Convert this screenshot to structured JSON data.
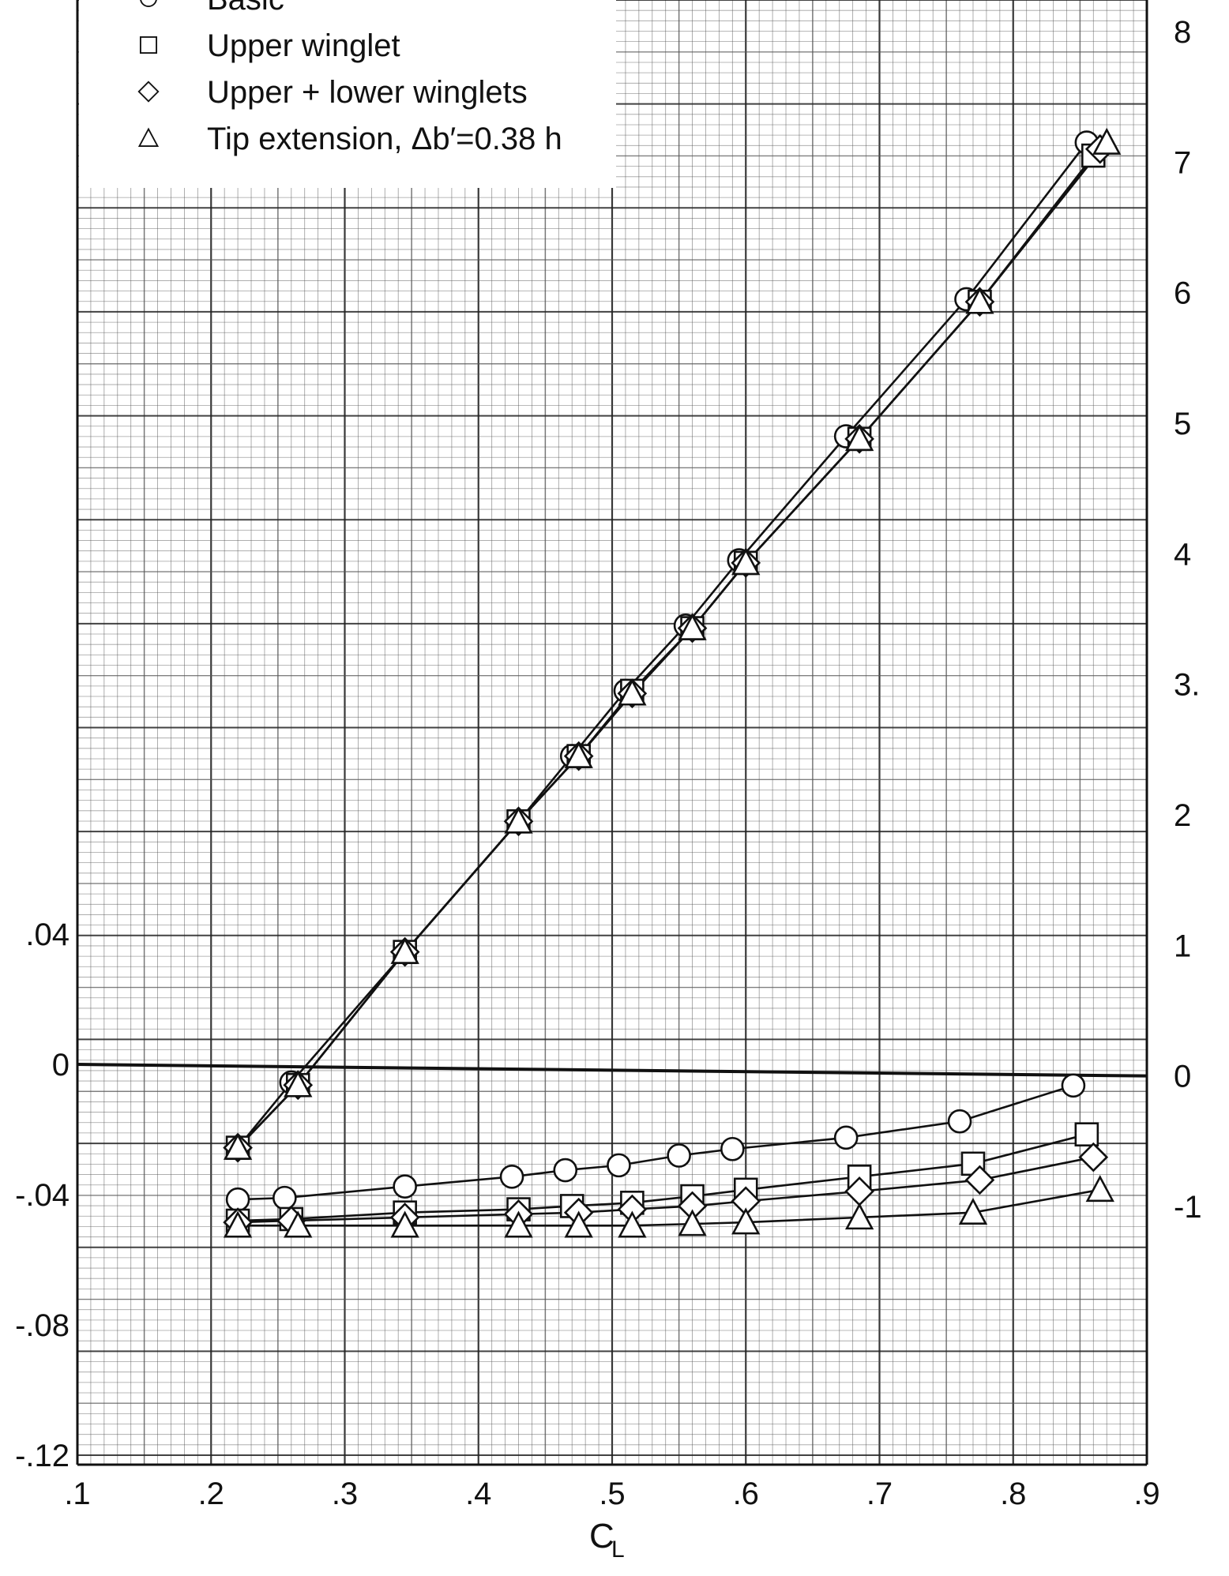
{
  "chart_data": {
    "type": "line",
    "xlabel": "C",
    "xlabel_subscript": "L",
    "xlim": [
      0.1,
      0.9
    ],
    "x_ticks": [
      ".1",
      ".2",
      ".3",
      ".4",
      ".5",
      ".6",
      ".7",
      ".8",
      ".9"
    ],
    "left_axis": {
      "ylim": [
        -0.12,
        0.04
      ],
      "tick_labels": [
        ".04",
        "0",
        "-.04",
        "-.08",
        "-.12"
      ],
      "tick_values": [
        0.04,
        0,
        -0.04,
        -0.08,
        -0.12
      ]
    },
    "right_axis": {
      "ylim": [
        -1.95,
        8.2
      ],
      "tick_labels": [
        "8",
        "7",
        "6",
        "5",
        "4",
        "3.",
        "2",
        "1",
        "0",
        "-1"
      ],
      "tick_values": [
        8,
        7,
        6,
        5,
        4,
        3,
        2,
        1,
        0,
        -1
      ]
    },
    "grid": true,
    "legend_position": "top-left",
    "legend": [
      {
        "marker": "circle",
        "label": "Basic"
      },
      {
        "marker": "square",
        "label": "Upper winglet"
      },
      {
        "marker": "diamond",
        "label": "Upper + lower winglets"
      },
      {
        "marker": "triangle",
        "label": "Tip extension, Δb′=0.38 h"
      }
    ],
    "upper_curves": {
      "axis": "right",
      "series": [
        {
          "marker": "circle",
          "x": [
            0.22,
            0.26,
            0.345,
            0.43,
            0.47,
            0.51,
            0.555,
            0.595,
            0.675,
            0.765,
            0.855
          ],
          "y": [
            -0.55,
            -0.05,
            0.95,
            1.95,
            2.45,
            2.95,
            3.45,
            3.95,
            4.9,
            5.95,
            7.15
          ]
        },
        {
          "marker": "square",
          "x": [
            0.22,
            0.265,
            0.345,
            0.43,
            0.475,
            0.515,
            0.56,
            0.6,
            0.685,
            0.775,
            0.86
          ],
          "y": [
            -0.55,
            -0.07,
            0.95,
            1.95,
            2.45,
            2.95,
            3.43,
            3.93,
            4.88,
            5.93,
            7.05
          ]
        },
        {
          "marker": "diamond",
          "x": [
            0.22,
            0.265,
            0.345,
            0.43,
            0.475,
            0.515,
            0.56,
            0.6,
            0.685,
            0.775,
            0.865
          ],
          "y": [
            -0.55,
            -0.07,
            0.95,
            1.95,
            2.45,
            2.93,
            3.43,
            3.93,
            4.88,
            5.93,
            7.1
          ]
        },
        {
          "marker": "triangle",
          "x": [
            0.22,
            0.265,
            0.345,
            0.43,
            0.475,
            0.515,
            0.56,
            0.6,
            0.685,
            0.775,
            0.87
          ],
          "y": [
            -0.55,
            -0.07,
            0.95,
            1.95,
            2.45,
            2.93,
            3.43,
            3.93,
            4.88,
            5.93,
            7.15
          ]
        }
      ]
    },
    "lower_curves": {
      "axis": "left",
      "series": [
        {
          "marker": "circle",
          "x": [
            0.22,
            0.255,
            0.345,
            0.425,
            0.465,
            0.505,
            0.55,
            0.59,
            0.675,
            0.76,
            0.845
          ],
          "y": [
            -0.0415,
            -0.041,
            -0.0375,
            -0.0345,
            -0.0325,
            -0.031,
            -0.028,
            -0.026,
            -0.0225,
            -0.0175,
            -0.0065
          ]
        },
        {
          "marker": "square",
          "x": [
            0.22,
            0.26,
            0.345,
            0.43,
            0.47,
            0.515,
            0.56,
            0.6,
            0.685,
            0.77,
            0.855
          ],
          "y": [
            -0.048,
            -0.0475,
            -0.0455,
            -0.0445,
            -0.0435,
            -0.0425,
            -0.0405,
            -0.0385,
            -0.0345,
            -0.0305,
            -0.0215
          ]
        },
        {
          "marker": "diamond",
          "x": [
            0.22,
            0.26,
            0.345,
            0.43,
            0.475,
            0.515,
            0.56,
            0.6,
            0.685,
            0.775,
            0.86
          ],
          "y": [
            -0.0485,
            -0.048,
            -0.047,
            -0.046,
            -0.0455,
            -0.0445,
            -0.0435,
            -0.042,
            -0.039,
            -0.0355,
            -0.0285
          ]
        },
        {
          "marker": "triangle",
          "x": [
            0.22,
            0.265,
            0.345,
            0.43,
            0.475,
            0.515,
            0.56,
            0.6,
            0.685,
            0.77,
            0.865
          ],
          "y": [
            -0.0495,
            -0.0495,
            -0.0495,
            -0.0495,
            -0.0495,
            -0.0495,
            -0.049,
            -0.0485,
            -0.047,
            -0.0455,
            -0.0385
          ]
        }
      ]
    }
  }
}
